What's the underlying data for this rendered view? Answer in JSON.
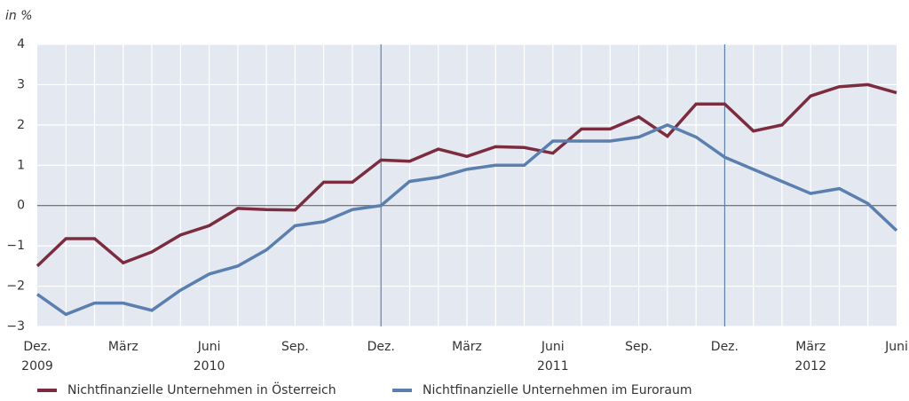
{
  "chart_data": {
    "type": "line",
    "y_label": "in %",
    "categories": [
      "Dez.\n2009",
      null,
      null,
      "März",
      null,
      null,
      "Juni\n2010",
      null,
      null,
      "Sep.",
      null,
      null,
      "Dez.",
      null,
      null,
      "März",
      null,
      null,
      "Juni\n2011",
      null,
      null,
      "Sep.",
      null,
      null,
      "Dez.",
      null,
      null,
      "März\n2012",
      null,
      null,
      "Juni"
    ],
    "series": [
      {
        "name": "Nichtfinanzielle Unternehmen in Österreich",
        "color": "#7b2d3f",
        "values": [
          -1.5,
          -0.82,
          -0.82,
          -1.42,
          -1.15,
          -0.73,
          -0.5,
          -0.07,
          -0.1,
          -0.11,
          0.58,
          0.58,
          1.13,
          1.1,
          1.4,
          1.22,
          1.46,
          1.44,
          1.3,
          1.9,
          1.9,
          2.2,
          1.72,
          2.52,
          2.52,
          1.85,
          2.0,
          2.72,
          2.95,
          3.0,
          2.8
        ]
      },
      {
        "name": "Nichtfinanzielle Unternehmen im Euroraum",
        "color": "#5b7fae",
        "values": [
          -2.2,
          -2.7,
          -2.42,
          -2.42,
          -2.6,
          -2.1,
          -1.7,
          -1.5,
          -1.1,
          -0.5,
          -0.4,
          -0.1,
          0,
          0.6,
          0.7,
          0.9,
          1.0,
          1.0,
          1.6,
          1.6,
          1.6,
          1.7,
          2.0,
          1.7,
          1.2,
          0.9,
          0.6,
          0.3,
          0.42,
          0.05,
          -0.62
        ]
      }
    ],
    "ylim": [
      -3,
      4
    ],
    "yticks": [
      {
        "value": -3,
        "label": "−3"
      },
      {
        "value": -2,
        "label": "−2"
      },
      {
        "value": -1,
        "label": "−1"
      },
      0,
      1,
      2,
      3,
      4
    ],
    "grid": true
  }
}
